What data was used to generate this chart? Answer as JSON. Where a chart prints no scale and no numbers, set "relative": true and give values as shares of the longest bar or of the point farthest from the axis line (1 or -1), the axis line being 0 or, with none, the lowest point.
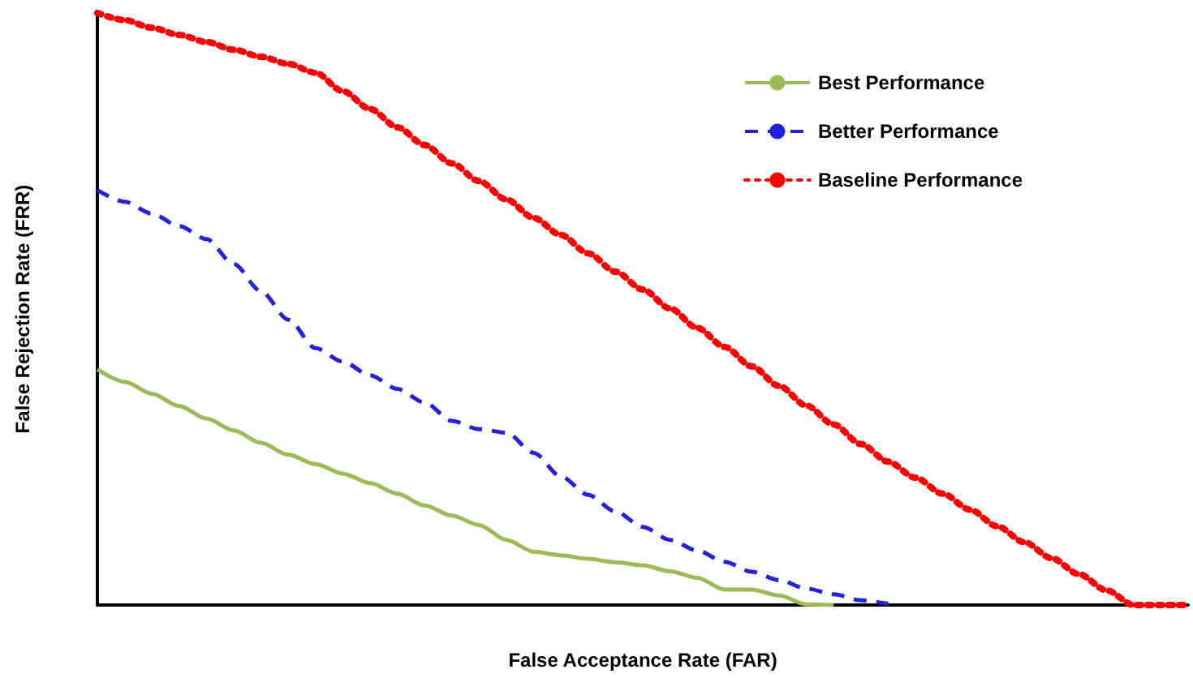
{
  "chart_data": {
    "type": "line",
    "relative": true,
    "xlabel": "False Acceptance Rate (FAR)",
    "ylabel": "False Rejection Rate (FRR)",
    "legend": "top right",
    "grid": false,
    "marker": "none",
    "categories": [
      null,
      null,
      null,
      null,
      null,
      null,
      null,
      null,
      null,
      null,
      null,
      null,
      null,
      null,
      null,
      null,
      null,
      null,
      null,
      null,
      null,
      null,
      null,
      null,
      null,
      null,
      null,
      null,
      null,
      null,
      null,
      null,
      null,
      null,
      null,
      null,
      null,
      null,
      null,
      null,
      null
    ],
    "series": [
      {
        "name": "Best Performance",
        "color": "#9bbb59",
        "line_style": "solid",
        "values": [
          0.398,
          0.377,
          0.357,
          0.336,
          0.315,
          0.295,
          0.274,
          0.254,
          0.238,
          0.222,
          0.206,
          0.188,
          0.168,
          0.151,
          0.135,
          0.11,
          0.09,
          0.084,
          0.078,
          0.072,
          0.067,
          0.057,
          0.046,
          0.026,
          0.026,
          0.016,
          0.001,
          0,
          null,
          null,
          null,
          null,
          null,
          null,
          null,
          null,
          null,
          null,
          null,
          null,
          null
        ]
      },
      {
        "name": "Better Performance",
        "color": "#2222dd",
        "line_style": "dashed",
        "values": [
          0.701,
          0.681,
          0.661,
          0.64,
          0.618,
          0.576,
          0.53,
          0.482,
          0.434,
          0.411,
          0.388,
          0.365,
          0.342,
          0.311,
          0.297,
          0.291,
          0.257,
          0.217,
          0.186,
          0.158,
          0.132,
          0.11,
          0.092,
          0.073,
          0.056,
          0.042,
          0.028,
          0.018,
          0.008,
          0.002,
          null,
          null,
          null,
          null,
          null,
          null,
          null,
          null,
          null,
          null,
          null
        ]
      },
      {
        "name": "Baseline Performance",
        "color": "#ff0000",
        "line_style": "dotted",
        "values": [
          1,
          0.988,
          0.975,
          0.963,
          0.951,
          0.938,
          0.926,
          0.914,
          0.899,
          0.868,
          0.838,
          0.807,
          0.777,
          0.746,
          0.716,
          0.685,
          0.654,
          0.625,
          0.594,
          0.563,
          0.533,
          0.501,
          0.468,
          0.436,
          0.403,
          0.37,
          0.337,
          0.305,
          0.272,
          0.242,
          0.215,
          0.188,
          0.161,
          0.133,
          0.106,
          0.079,
          0.052,
          0.025,
          0,
          0,
          0
        ]
      }
    ]
  }
}
